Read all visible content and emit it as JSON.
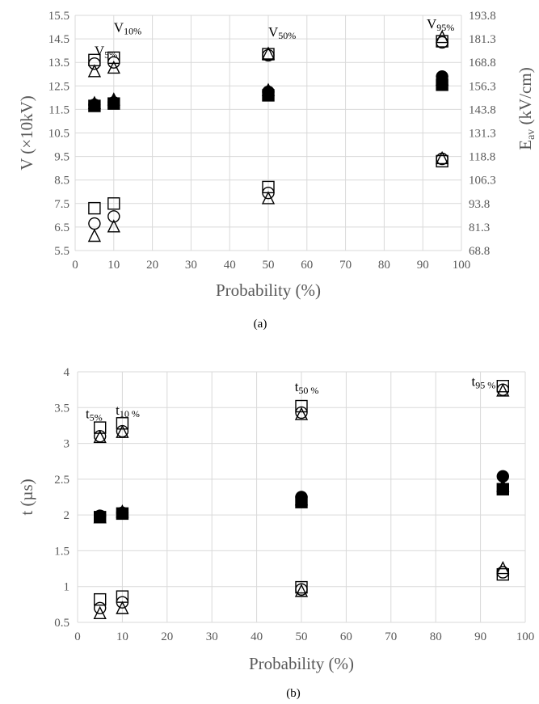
{
  "chart_data": [
    {
      "panel_label": "(a)",
      "type": "scatter",
      "xlabel": "Probability (%)",
      "ylabel": "V (×10kV)",
      "y2label": "E",
      "y2label_sub": "av",
      "y2label_rest": " (kV/cm)",
      "xlim": [
        0,
        100
      ],
      "ylim": [
        5.5,
        15.5
      ],
      "y2lim": [
        68.8,
        193.8
      ],
      "xticks": [
        "0",
        "10",
        "20",
        "30",
        "40",
        "50",
        "60",
        "70",
        "80",
        "90",
        "100"
      ],
      "yticks": [
        "5.5",
        "6.5",
        "7.5",
        "8.5",
        "9.5",
        "10.5",
        "11.5",
        "12.5",
        "13.5",
        "14.5",
        "15.5"
      ],
      "y2ticks": [
        "68.8",
        "81.3",
        "93.8",
        "106.3",
        "118.8",
        "131.3",
        "143.8",
        "156.3",
        "168.8",
        "181.3",
        "193.8"
      ],
      "grid": true,
      "annotations": [
        {
          "base": "V",
          "sub": "5%",
          "x": 5,
          "y": 13.8
        },
        {
          "base": "V",
          "sub": "10%",
          "x": 10,
          "y": 14.8
        },
        {
          "base": "V",
          "sub": "50%",
          "x": 50,
          "y": 14.6
        },
        {
          "base": "V",
          "sub": "95%",
          "x": 91,
          "y": 14.95
        }
      ],
      "series": [
        {
          "marker": "open-square",
          "points": [
            [
              5,
              13.6
            ],
            [
              10,
              13.7
            ],
            [
              50,
              13.85
            ],
            [
              95,
              14.4
            ],
            [
              5,
              7.3
            ],
            [
              10,
              7.5
            ],
            [
              50,
              8.2
            ],
            [
              95,
              9.3
            ]
          ]
        },
        {
          "marker": "open-circle",
          "points": [
            [
              5,
              13.45
            ],
            [
              10,
              13.5
            ],
            [
              50,
              13.8
            ],
            [
              95,
              14.35
            ],
            [
              5,
              6.65
            ],
            [
              10,
              6.95
            ],
            [
              50,
              7.95
            ],
            [
              95,
              9.4
            ]
          ]
        },
        {
          "marker": "open-triangle",
          "points": [
            [
              5,
              13.1
            ],
            [
              10,
              13.25
            ],
            [
              50,
              13.85
            ],
            [
              95,
              14.55
            ],
            [
              5,
              6.1
            ],
            [
              10,
              6.5
            ],
            [
              50,
              7.7
            ],
            [
              95,
              9.4
            ]
          ]
        },
        {
          "marker": "filled-square",
          "points": [
            [
              5,
              11.65
            ],
            [
              10,
              11.75
            ],
            [
              50,
              12.1
            ],
            [
              95,
              12.55
            ]
          ]
        },
        {
          "marker": "filled-circle",
          "points": [
            [
              5,
              11.7
            ],
            [
              10,
              11.8
            ],
            [
              50,
              12.25
            ],
            [
              95,
              12.9
            ]
          ]
        },
        {
          "marker": "filled-triangle",
          "points": [
            [
              5,
              11.75
            ],
            [
              10,
              11.9
            ],
            [
              50,
              12.3
            ],
            [
              95,
              12.75
            ]
          ]
        }
      ]
    },
    {
      "panel_label": "(b)",
      "type": "scatter",
      "xlabel": "Probability (%)",
      "ylabel": "t (µs)",
      "xlim": [
        0,
        100
      ],
      "ylim": [
        0.5,
        4
      ],
      "xticks": [
        "0",
        "10",
        "20",
        "30",
        "40",
        "50",
        "60",
        "70",
        "80",
        "90",
        "100"
      ],
      "yticks": [
        "0.5",
        "1",
        "1.5",
        "2",
        "2.5",
        "3",
        "3.5",
        "4"
      ],
      "grid": true,
      "annotations": [
        {
          "base": "t",
          "sub": "5%",
          "x": 1.8,
          "y": 3.35
        },
        {
          "base": "t",
          "sub": "10 %",
          "x": 8.5,
          "y": 3.4
        },
        {
          "base": "t",
          "sub": "50 %",
          "x": 48.5,
          "y": 3.73
        },
        {
          "base": "t",
          "sub": "95 %",
          "x": 88,
          "y": 3.8
        }
      ],
      "series": [
        {
          "marker": "open-square",
          "points": [
            [
              5,
              3.22
            ],
            [
              10,
              3.28
            ],
            [
              50,
              3.52
            ],
            [
              95,
              3.8
            ],
            [
              5,
              0.82
            ],
            [
              10,
              0.86
            ],
            [
              50,
              0.99
            ],
            [
              95,
              1.17
            ]
          ]
        },
        {
          "marker": "open-circle",
          "points": [
            [
              5,
              3.1
            ],
            [
              10,
              3.17
            ],
            [
              50,
              3.43
            ],
            [
              95,
              3.75
            ],
            [
              5,
              0.7
            ],
            [
              10,
              0.78
            ],
            [
              50,
              0.96
            ],
            [
              95,
              1.2
            ]
          ]
        },
        {
          "marker": "open-triangle",
          "points": [
            [
              5,
              3.08
            ],
            [
              10,
              3.15
            ],
            [
              50,
              3.4
            ],
            [
              95,
              3.73
            ],
            [
              5,
              0.62
            ],
            [
              10,
              0.69
            ],
            [
              50,
              0.93
            ],
            [
              95,
              1.25
            ]
          ]
        },
        {
          "marker": "filled-square",
          "points": [
            [
              5,
              1.97
            ],
            [
              10,
              2.02
            ],
            [
              50,
              2.18
            ],
            [
              95,
              2.36
            ]
          ]
        },
        {
          "marker": "filled-circle",
          "points": [
            [
              5,
              1.99
            ],
            [
              10,
              2.03
            ],
            [
              50,
              2.25
            ],
            [
              95,
              2.54
            ]
          ]
        },
        {
          "marker": "filled-triangle",
          "points": [
            [
              5,
              1.96
            ],
            [
              10,
              2.04
            ],
            [
              50,
              2.21
            ],
            [
              95,
              2.4
            ]
          ]
        }
      ]
    }
  ]
}
